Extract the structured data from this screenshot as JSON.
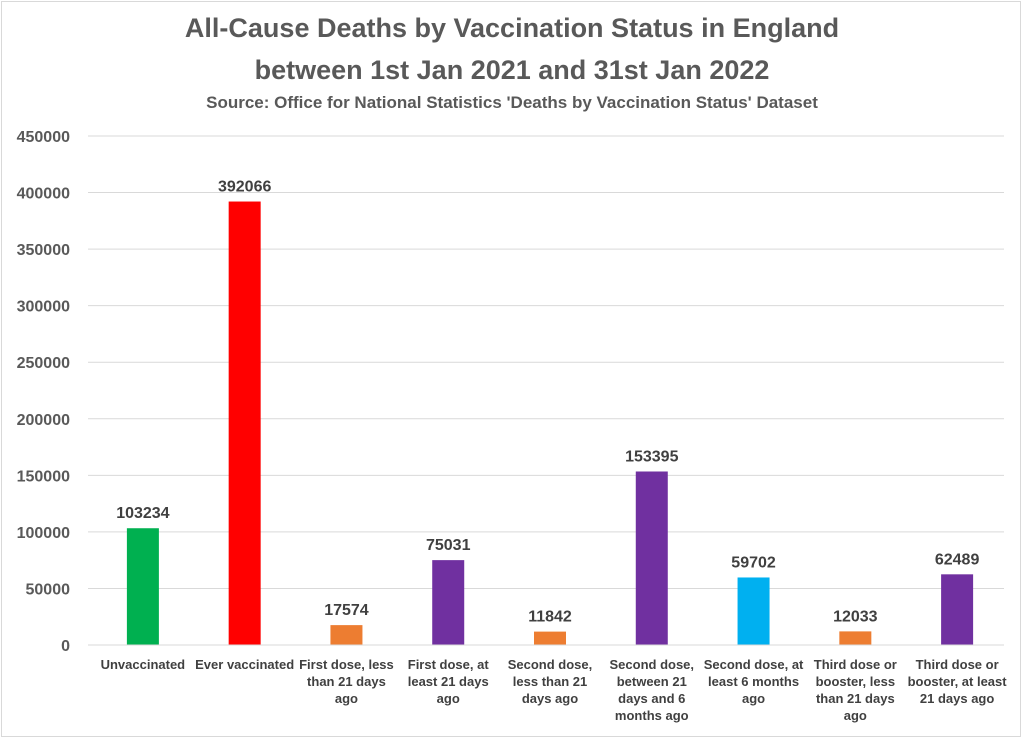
{
  "chart_data": {
    "type": "bar",
    "title_line1": "All-Cause Deaths by Vaccination Status in England",
    "title_line2": "between 1st Jan 2021 and 31st Jan 2022",
    "subtitle": "Source: Office for National Statistics 'Deaths by Vaccination Status' Dataset",
    "xlabel": "",
    "ylabel": "",
    "ylim": [
      0,
      450000
    ],
    "yticks": [
      "0",
      "50000",
      "100000",
      "150000",
      "200000",
      "250000",
      "300000",
      "350000",
      "400000",
      "450000"
    ],
    "grid": true,
    "legend": "none",
    "categories": [
      "Unvaccinated",
      "Ever vaccinated",
      "First dose, less than 21 days ago",
      "First dose, at least 21 days ago",
      "Second dose, less than 21 days ago",
      "Second dose, between 21 days and 6 months ago",
      "Second dose, at least 6 months ago",
      "Third dose or booster, less than 21 days ago",
      "Third dose or booster, at least 21 days ago"
    ],
    "values": [
      103234,
      392066,
      17574,
      75031,
      11842,
      153395,
      59702,
      12033,
      62489
    ],
    "data_labels": [
      "103234",
      "392066",
      "17574",
      "75031",
      "11842",
      "153395",
      "59702",
      "12033",
      "62489"
    ],
    "colors": [
      "#00b050",
      "#ff0000",
      "#ed7d31",
      "#7030a0",
      "#ed7d31",
      "#7030a0",
      "#00b0f0",
      "#ed7d31",
      "#7030a0"
    ]
  }
}
